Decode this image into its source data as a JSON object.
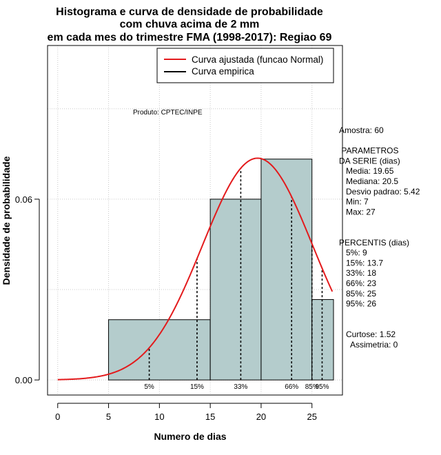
{
  "chart_data": {
    "type": "histogram",
    "title_lines": [
      "Histograma e curva de densidade de probabilidade",
      "com chuva acima de 2 mm",
      "em cada mes do trimestre FMA (1998-2017): Regiao 69"
    ],
    "xlabel": "Numero de dias",
    "ylabel": "Densidade de probabilidade",
    "xlim": [
      -1,
      28
    ],
    "ylim": [
      -0.005,
      0.111
    ],
    "x_ticks": [
      0,
      5,
      10,
      15,
      20,
      25
    ],
    "y_ticks": [
      0.0,
      0.06
    ],
    "y_tick_labels": [
      "0.00",
      "0.06"
    ],
    "bins": [
      {
        "x0": 5,
        "x1": 15,
        "density": 0.02
      },
      {
        "x0": 15,
        "x1": 20,
        "density": 0.06
      },
      {
        "x0": 20,
        "x1": 25,
        "density": 0.0733
      },
      {
        "x0": 25,
        "x1": 28,
        "density": 0.0267
      }
    ],
    "normal_fit": {
      "mean": 19.65,
      "sd": 5.42,
      "x_from": 0,
      "x_to": 27
    },
    "percentiles": [
      {
        "label": "5%",
        "x": 9
      },
      {
        "label": "15%",
        "x": 13.7
      },
      {
        "label": "33%",
        "x": 18
      },
      {
        "label": "66%",
        "x": 23
      },
      {
        "label": "85%",
        "x": 25
      },
      {
        "label": "95%",
        "x": 26
      }
    ],
    "legend": {
      "position": "top-right",
      "entries": [
        {
          "label": "Curva ajustada (funcao Normal)",
          "color": "#e31a1c"
        },
        {
          "label": "Curva empirica",
          "color": "#000000"
        }
      ]
    },
    "grid": true,
    "colors": {
      "bars": "#b4cccc",
      "fit": "#e31a1c",
      "empirical": "#000000"
    }
  },
  "annotations": {
    "produto": "Produto: CPTEC/INPE",
    "side_panel": [
      "Amostra: 60",
      "",
      " PARAMETROS",
      "DA SERIE (dias)",
      "   Media: 19.65",
      "   Mediana: 20.5",
      "   Desvio padrao: 5.42",
      "   Min: 7",
      "   Max: 27",
      "",
      "",
      "PERCENTIS (dias)",
      "   5%: 9",
      "   15%: 13.7",
      "   33%: 18",
      "   66%: 23",
      "   85%: 25",
      "   95%: 26",
      "",
      "",
      "   Curtose: 1.52",
      "     Assimetria: 0"
    ]
  }
}
